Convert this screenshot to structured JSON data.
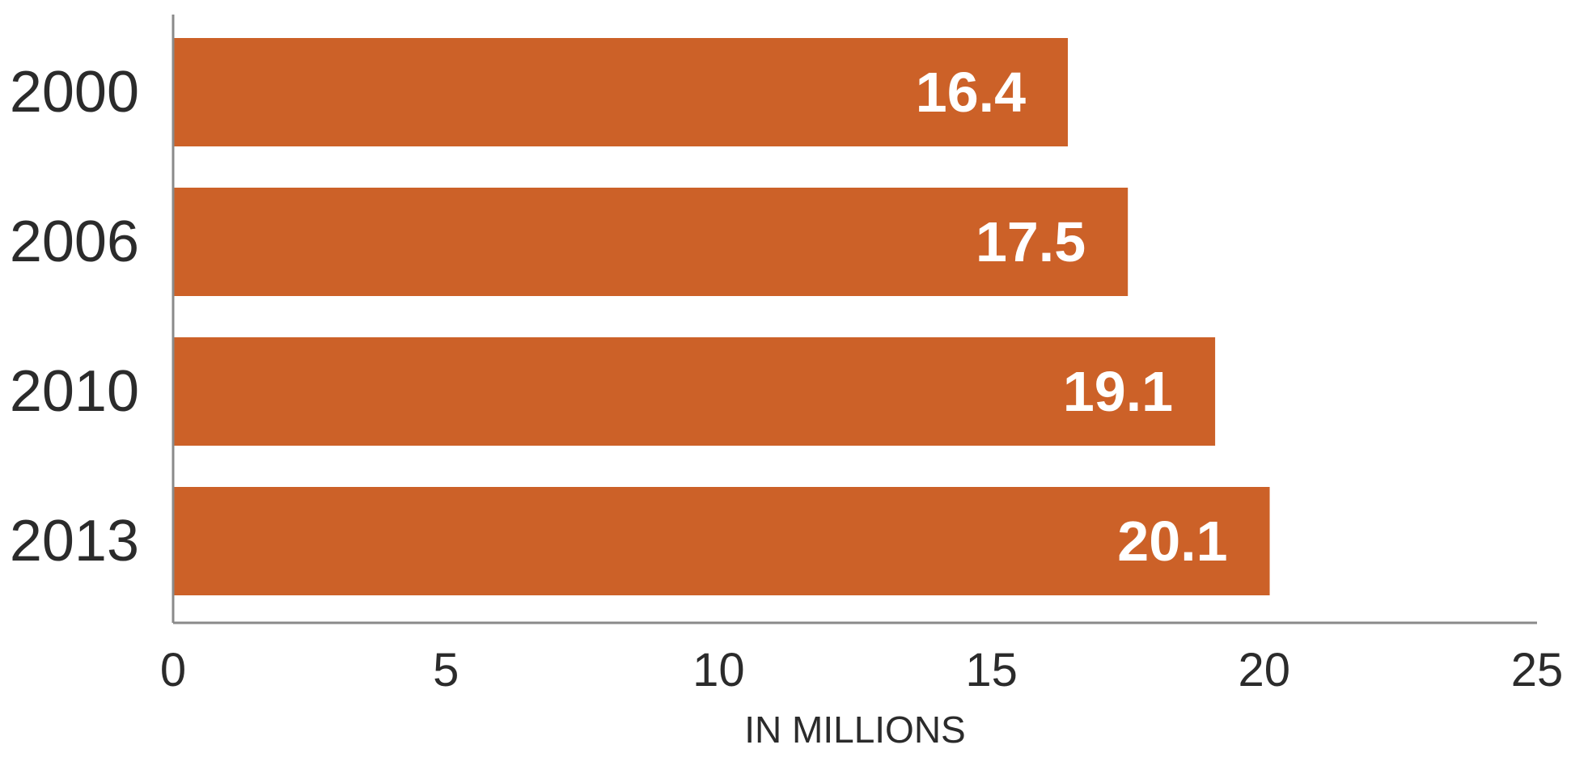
{
  "chart_data": {
    "type": "bar",
    "orientation": "horizontal",
    "categories": [
      "2000",
      "2006",
      "2010",
      "2013"
    ],
    "values": [
      16.4,
      17.5,
      19.1,
      20.1
    ],
    "value_labels": [
      "16.4",
      "17.5",
      "19.1",
      "20.1"
    ],
    "xlabel": "IN MILLIONS",
    "ylabel": "",
    "xlim": [
      0,
      25
    ],
    "xticks": [
      "0",
      "5",
      "10",
      "15",
      "20",
      "25"
    ],
    "grid": false,
    "bar_color": "#cc6128",
    "value_label_color": "#ffffff"
  }
}
